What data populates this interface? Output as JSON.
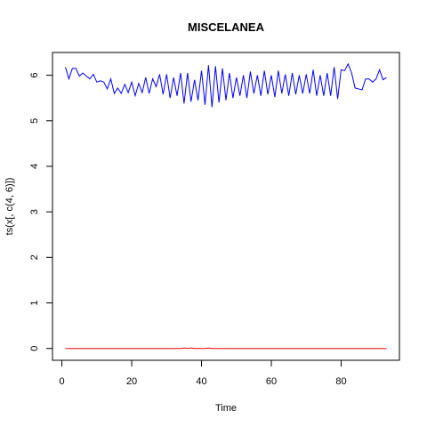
{
  "chart_data": {
    "type": "line",
    "title": "MISCELANEA",
    "xlabel": "Time",
    "ylabel": "ts(x[, c(4, 6)])",
    "xlim": [
      -2.7,
      96.7
    ],
    "ylim": [
      -0.26,
      6.5
    ],
    "x_ticks": [
      0,
      20,
      40,
      60,
      80
    ],
    "y_ticks": [
      0,
      1,
      2,
      3,
      4,
      5,
      6
    ],
    "grid": false,
    "legend": "none",
    "series": [
      {
        "color": "#0000ff",
        "x": [
          1,
          2,
          3,
          4,
          5,
          6,
          7,
          8,
          9,
          10,
          11,
          12,
          13,
          14,
          15,
          16,
          17,
          18,
          19,
          20,
          21,
          22,
          23,
          24,
          25,
          26,
          27,
          28,
          29,
          30,
          31,
          32,
          33,
          34,
          35,
          36,
          37,
          38,
          39,
          40,
          41,
          42,
          43,
          44,
          45,
          46,
          47,
          48,
          49,
          50,
          51,
          52,
          53,
          54,
          55,
          56,
          57,
          58,
          59,
          60,
          61,
          62,
          63,
          64,
          65,
          66,
          67,
          68,
          69,
          70,
          71,
          72,
          73,
          74,
          75,
          76,
          77,
          78,
          79,
          80,
          81,
          82,
          83,
          84,
          85,
          86,
          87,
          88,
          89,
          90,
          91,
          92,
          93
        ],
        "values": [
          6.18,
          5.92,
          6.15,
          6.15,
          5.98,
          6.05,
          5.98,
          5.92,
          6.02,
          5.85,
          5.88,
          5.85,
          5.7,
          5.92,
          5.6,
          5.72,
          5.6,
          5.8,
          5.62,
          5.85,
          5.55,
          5.82,
          5.62,
          5.95,
          5.6,
          5.92,
          5.75,
          6.02,
          5.58,
          6.02,
          5.5,
          5.95,
          5.55,
          6.05,
          5.38,
          6.05,
          5.42,
          5.9,
          5.45,
          6.1,
          5.35,
          6.22,
          5.3,
          6.2,
          5.4,
          6.15,
          5.45,
          6.05,
          5.5,
          5.95,
          5.55,
          6.0,
          5.5,
          6.08,
          5.6,
          6.0,
          5.55,
          6.1,
          5.58,
          6.0,
          5.52,
          6.1,
          5.6,
          6.02,
          5.55,
          6.05,
          5.58,
          6.0,
          5.6,
          6.02,
          5.6,
          6.12,
          5.55,
          6.0,
          5.55,
          6.05,
          5.55,
          6.18,
          5.48,
          6.12,
          6.1,
          6.25,
          6.05,
          5.72,
          5.7,
          5.68,
          5.92,
          5.92,
          5.85,
          5.92,
          6.12,
          5.9,
          5.95
        ]
      },
      {
        "color": "#ff0000",
        "x": [
          1,
          2,
          3,
          4,
          5,
          6,
          7,
          8,
          9,
          10,
          11,
          12,
          13,
          14,
          15,
          16,
          17,
          18,
          19,
          20,
          21,
          22,
          23,
          24,
          25,
          26,
          27,
          28,
          29,
          30,
          31,
          32,
          33,
          34,
          35,
          36,
          37,
          38,
          39,
          40,
          41,
          42,
          43,
          44,
          45,
          46,
          47,
          48,
          49,
          50,
          51,
          52,
          53,
          54,
          55,
          56,
          57,
          58,
          59,
          60,
          61,
          62,
          63,
          64,
          65,
          66,
          67,
          68,
          69,
          70,
          71,
          72,
          73,
          74,
          75,
          76,
          77,
          78,
          79,
          80,
          81,
          82,
          83,
          84,
          85,
          86,
          87,
          88,
          89,
          90,
          91,
          92,
          93
        ],
        "values": [
          0.0,
          0.0,
          0.0,
          0.0,
          0.0,
          0.0,
          0.0,
          0.0,
          0.0,
          0.0,
          0.0,
          0.0,
          0.0,
          0.0,
          0.0,
          0.0,
          0.0,
          0.0,
          0.0,
          0.0,
          0.0,
          0.0,
          0.0,
          0.0,
          0.0,
          0.0,
          0.0,
          0.0,
          0.0,
          0.0,
          0.0,
          0.0,
          0.0,
          0.0,
          0.01,
          0.0,
          0.01,
          0.0,
          0.0,
          0.0,
          0.0,
          0.01,
          0.0,
          0.0,
          0.0,
          0.0,
          0.0,
          0.0,
          0.0,
          0.0,
          0.0,
          0.0,
          0.0,
          0.0,
          0.0,
          0.0,
          0.0,
          0.0,
          0.0,
          0.0,
          0.0,
          0.0,
          0.0,
          0.0,
          0.0,
          0.0,
          0.0,
          0.0,
          0.0,
          0.0,
          0.0,
          0.0,
          0.0,
          0.0,
          0.0,
          0.0,
          0.0,
          0.0,
          0.0,
          0.0,
          0.0,
          0.0,
          0.0,
          0.0,
          0.0,
          0.0,
          0.0,
          0.0,
          0.0,
          0.0,
          0.0,
          0.0,
          0.0
        ]
      }
    ]
  }
}
